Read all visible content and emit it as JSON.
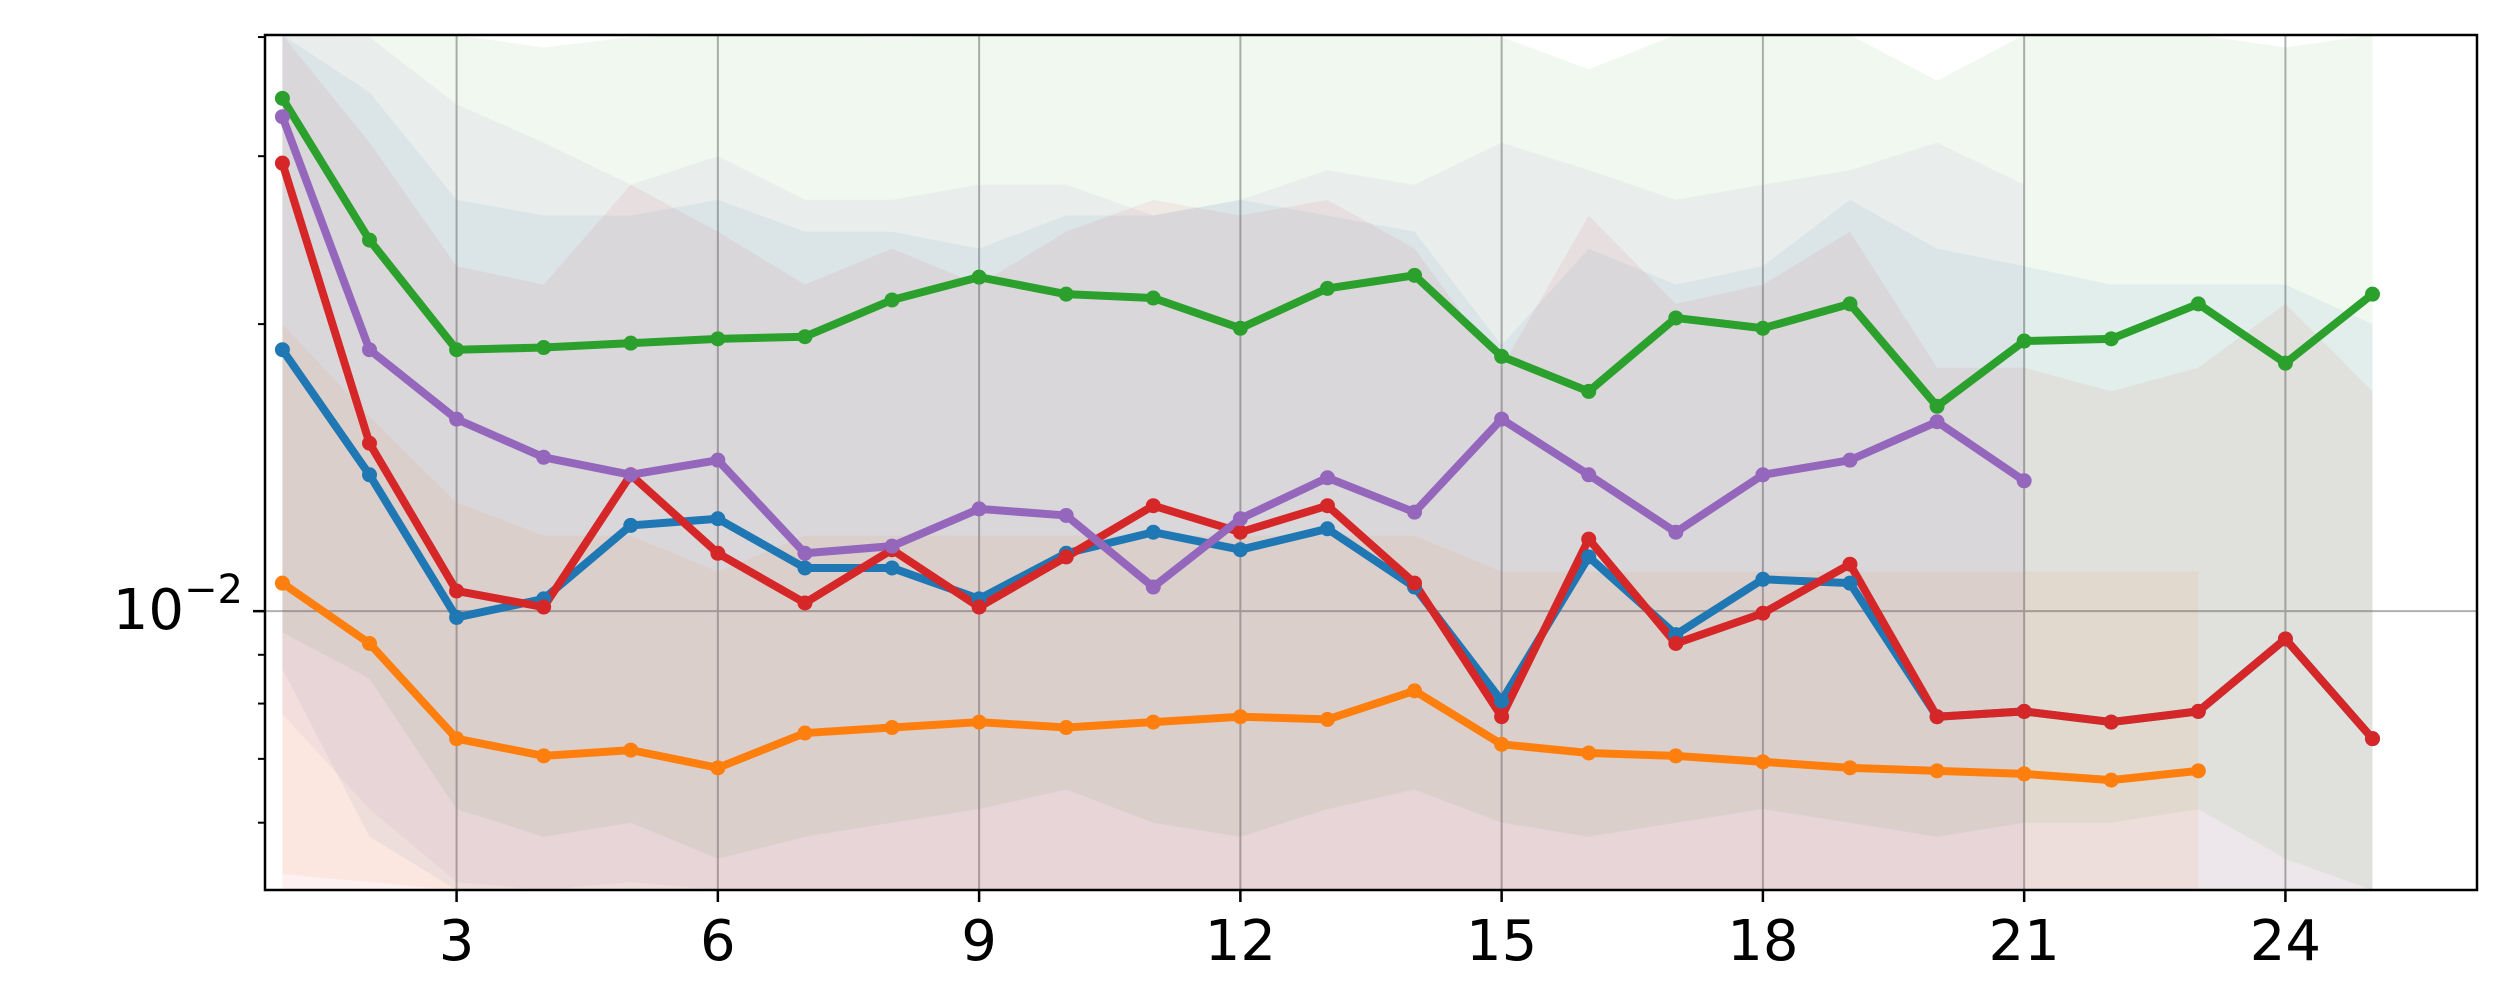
{
  "chart_data": {
    "type": "line",
    "title": "",
    "xlabel": "",
    "ylabel": "",
    "x_scale": "linear",
    "y_scale": "log",
    "xlim": [
      0.8,
      26.2
    ],
    "ylim": [
      0.0051,
      0.0402
    ],
    "grid": true,
    "legend": "none",
    "x_ticks": [
      {
        "value": 3,
        "label": "3"
      },
      {
        "value": 6,
        "label": "6"
      },
      {
        "value": 9,
        "label": "9"
      },
      {
        "value": 12,
        "label": "12"
      },
      {
        "value": 15,
        "label": "15"
      },
      {
        "value": 18,
        "label": "18"
      },
      {
        "value": 21,
        "label": "21"
      },
      {
        "value": 24,
        "label": "24"
      }
    ],
    "y_ticks": [
      {
        "value": 0.01,
        "base": "10",
        "exponent": "−2"
      }
    ],
    "series": [
      {
        "color": "#1f77b4",
        "x": [
          1,
          2,
          3,
          4,
          5,
          6,
          7,
          8,
          9,
          10,
          11,
          12,
          13,
          14,
          15,
          16,
          17,
          18,
          19,
          20,
          21,
          22,
          23,
          24,
          25
        ],
        "values": [
          0.0188,
          0.0139,
          0.00985,
          0.0103,
          0.0123,
          0.0125,
          0.0111,
          0.0111,
          0.0103,
          0.0115,
          0.0121,
          0.0116,
          0.0122,
          0.0106,
          0.00805,
          0.0114,
          0.00945,
          0.0108,
          0.0107,
          0.00775,
          0.00785,
          0.00765,
          0.00785,
          0.00935,
          0.00735
        ],
        "band_low": [
          0.0087,
          0.0058,
          0.0047,
          0.0045,
          0.0044,
          0.0046,
          0.0045,
          0.0041,
          0.0046,
          0.0047,
          0.0046,
          0.0046,
          0.0047,
          0.0047,
          0.0046,
          0.0047,
          0.0046,
          0.0046,
          0.0047,
          0.0047,
          0.0046,
          0.0046,
          0.0046,
          0.0047,
          0.0045
        ],
        "band_high": [
          0.045,
          0.035,
          0.027,
          0.026,
          0.026,
          0.027,
          0.025,
          0.025,
          0.024,
          0.026,
          0.026,
          0.027,
          0.026,
          0.025,
          0.019,
          0.024,
          0.022,
          0.023,
          0.027,
          0.024,
          0.023,
          0.022,
          0.022,
          0.022,
          0.02
        ]
      },
      {
        "color": "#ff7f0e",
        "x": [
          1,
          2,
          3,
          4,
          5,
          6,
          7,
          8,
          9,
          10,
          11,
          12,
          13,
          14,
          15,
          16,
          17,
          18,
          19,
          20,
          21,
          22,
          23
        ],
        "values": [
          0.0107,
          0.00925,
          0.00735,
          0.00705,
          0.00715,
          0.00685,
          0.00745,
          0.00755,
          0.00765,
          0.00755,
          0.00765,
          0.00775,
          0.0077,
          0.00825,
          0.00725,
          0.0071,
          0.00705,
          0.00695,
          0.00685,
          0.0068,
          0.00675,
          0.00665,
          0.0068
        ],
        "band_low": [
          0.0053,
          0.0052,
          0.0047,
          0.0046,
          0.0045,
          0.0046,
          0.0045,
          0.0044,
          0.0046,
          0.0046,
          0.0045,
          0.0044,
          0.0045,
          0.0046,
          0.0045,
          0.0044,
          0.0046,
          0.0045,
          0.0046,
          0.0045,
          0.0045,
          0.0044,
          0.0045
        ],
        "band_high": [
          0.02,
          0.016,
          0.013,
          0.012,
          0.012,
          0.011,
          0.012,
          0.012,
          0.012,
          0.012,
          0.012,
          0.012,
          0.012,
          0.012,
          0.011,
          0.011,
          0.011,
          0.011,
          0.011,
          0.011,
          0.011,
          0.011,
          0.011
        ]
      },
      {
        "color": "#2ca02c",
        "x": [
          1,
          2,
          3,
          4,
          5,
          6,
          7,
          8,
          9,
          10,
          11,
          12,
          13,
          14,
          15,
          16,
          17,
          18,
          19,
          20,
          21,
          22,
          23,
          24,
          25
        ],
        "values": [
          0.0345,
          0.0245,
          0.0188,
          0.0189,
          0.0191,
          0.0193,
          0.0194,
          0.0212,
          0.0224,
          0.0215,
          0.0213,
          0.0198,
          0.0218,
          0.0225,
          0.0185,
          0.017,
          0.0203,
          0.0198,
          0.021,
          0.0164,
          0.0192,
          0.0193,
          0.021,
          0.0182,
          0.0215
        ],
        "band_low": [
          0.0095,
          0.0085,
          0.0062,
          0.0058,
          0.006,
          0.0055,
          0.0058,
          0.006,
          0.0062,
          0.0065,
          0.006,
          0.0058,
          0.0062,
          0.0065,
          0.006,
          0.0058,
          0.006,
          0.0062,
          0.006,
          0.0058,
          0.006,
          0.006,
          0.0062,
          0.0055,
          0.005
        ],
        "band_high": [
          0.06,
          0.05,
          0.042,
          0.039,
          0.04,
          0.042,
          0.041,
          0.04,
          0.045,
          0.045,
          0.045,
          0.043,
          0.044,
          0.048,
          0.04,
          0.037,
          0.041,
          0.041,
          0.042,
          0.036,
          0.043,
          0.042,
          0.046,
          0.039,
          0.047
        ]
      },
      {
        "color": "#d62728",
        "x": [
          1,
          2,
          3,
          4,
          5,
          6,
          7,
          8,
          9,
          10,
          11,
          12,
          13,
          14,
          15,
          16,
          17,
          18,
          19,
          20,
          21,
          22,
          23,
          24,
          25
        ],
        "values": [
          0.0295,
          0.015,
          0.0105,
          0.0101,
          0.0139,
          0.0115,
          0.0102,
          0.0116,
          0.0101,
          0.0114,
          0.0129,
          0.0121,
          0.0129,
          0.0107,
          0.00775,
          0.0119,
          0.00925,
          0.00995,
          0.0112,
          0.00775,
          0.00785,
          0.00765,
          0.00785,
          0.00935,
          0.00735
        ],
        "band_low": [
          0.005,
          0.0048,
          0.0046,
          0.0045,
          0.0046,
          0.0045,
          0.0046,
          0.0045,
          0.0046,
          0.0045,
          0.0046,
          0.0045,
          0.0046,
          0.0045,
          0.0045,
          0.0046,
          0.0045,
          0.0046,
          0.0045,
          0.0046,
          0.0045,
          0.0045,
          0.0046,
          0.0045,
          0.0045
        ],
        "band_high": [
          0.046,
          0.031,
          0.023,
          0.022,
          0.028,
          0.025,
          0.022,
          0.024,
          0.022,
          0.025,
          0.027,
          0.026,
          0.027,
          0.024,
          0.018,
          0.026,
          0.021,
          0.022,
          0.025,
          0.018,
          0.018,
          0.017,
          0.018,
          0.021,
          0.017
        ]
      },
      {
        "color": "#9467bd",
        "x": [
          1,
          2,
          3,
          4,
          5,
          6,
          7,
          8,
          9,
          10,
          11,
          12,
          13,
          14,
          15,
          16,
          17,
          18,
          19,
          20,
          21
        ],
        "values": [
          0.033,
          0.0188,
          0.0159,
          0.0145,
          0.0139,
          0.0144,
          0.0115,
          0.0117,
          0.0128,
          0.0126,
          0.0106,
          0.0125,
          0.0138,
          0.0127,
          0.0159,
          0.0139,
          0.0121,
          0.0139,
          0.0144,
          0.0158,
          0.0137
        ],
        "band_low": [
          0.0078,
          0.0062,
          0.0052,
          0.005,
          0.0052,
          0.005,
          0.0049,
          0.0048,
          0.005,
          0.0051,
          0.0048,
          0.005,
          0.0051,
          0.0049,
          0.005,
          0.0049,
          0.0048,
          0.0049,
          0.005,
          0.0051,
          0.0049
        ],
        "band_high": [
          0.05,
          0.04,
          0.034,
          0.031,
          0.028,
          0.03,
          0.027,
          0.027,
          0.028,
          0.028,
          0.026,
          0.027,
          0.029,
          0.028,
          0.031,
          0.029,
          0.027,
          0.028,
          0.029,
          0.031,
          0.028
        ]
      }
    ]
  }
}
